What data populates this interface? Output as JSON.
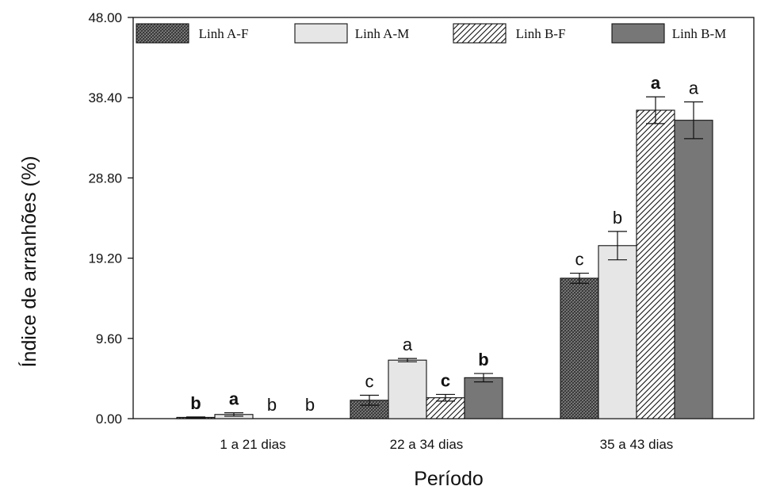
{
  "chart_data": {
    "type": "bar",
    "ylabel": "Índice de arranhões (%)",
    "xlabel": "Período",
    "ylim": [
      0,
      48
    ],
    "yticks": [
      "0.00",
      "9.60",
      "19.20",
      "28.80",
      "38.40",
      "48.00"
    ],
    "categories": [
      "1 a 21 dias",
      "22 a 34 dias",
      "35 a 43 dias"
    ],
    "legend_position": "top",
    "series": [
      {
        "name": "Linh A-F",
        "pattern": "crosshatch",
        "color": "#555555",
        "values": [
          0.15,
          2.2,
          16.8
        ],
        "errors": [
          0.05,
          0.6,
          0.6
        ],
        "labels": [
          "b",
          "c",
          "c"
        ],
        "label_bold": [
          true,
          false,
          false
        ]
      },
      {
        "name": "Linh A-M",
        "pattern": "solid",
        "color": "#e6e6e6",
        "values": [
          0.5,
          7.0,
          20.7
        ],
        "errors": [
          0.2,
          0.2,
          1.7
        ],
        "labels": [
          "a",
          "a",
          "b"
        ],
        "label_bold": [
          true,
          false,
          false
        ]
      },
      {
        "name": "Linh B-F",
        "pattern": "diagonal",
        "color": "#ffffff",
        "values": [
          0,
          2.5,
          36.9
        ],
        "errors": [
          0,
          0.4,
          1.6
        ],
        "labels": [
          "b",
          "c",
          "a"
        ],
        "label_bold": [
          false,
          true,
          true
        ]
      },
      {
        "name": "Linh B-M",
        "pattern": "solid",
        "color": "#777777",
        "values": [
          0,
          4.9,
          35.7
        ],
        "errors": [
          0,
          0.5,
          2.2
        ],
        "labels": [
          "b",
          "b",
          "a"
        ],
        "label_bold": [
          false,
          true,
          false
        ]
      }
    ]
  }
}
